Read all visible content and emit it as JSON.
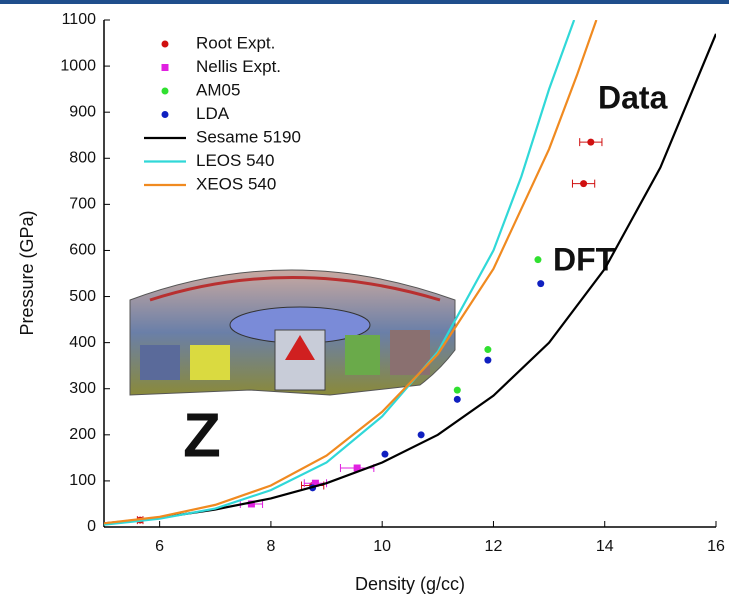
{
  "chart_data": {
    "type": "scatter-line",
    "xlabel": "Density (g/cc)",
    "ylabel": "Pressure (GPa)",
    "annotations": [
      "Data",
      "DFT",
      "Z"
    ],
    "xlim": [
      5,
      16
    ],
    "ylim": [
      0,
      1100
    ],
    "xticks": [
      6,
      8,
      10,
      12,
      14,
      16
    ],
    "yticks": [
      0,
      100,
      200,
      300,
      400,
      500,
      600,
      700,
      800,
      900,
      1000,
      1100
    ],
    "legend": "upper left",
    "series": [
      {
        "name": "Root Expt.",
        "color": "#d01010",
        "mode": "markers",
        "marker": "circle",
        "x": [
          5.65,
          8.75,
          13.62,
          13.75
        ],
        "values": [
          15,
          90,
          745,
          835
        ],
        "xerr": [
          0.05,
          0.2,
          0.2,
          0.2
        ]
      },
      {
        "name": "Nellis Expt.",
        "color": "#e020e0",
        "mode": "markers",
        "marker": "square",
        "x": [
          7.65,
          8.8,
          9.55
        ],
        "values": [
          50,
          95,
          128
        ],
        "xerr": [
          0.2,
          0.2,
          0.3
        ]
      },
      {
        "name": "AM05",
        "color": "#30e030",
        "mode": "markers",
        "marker": "circle",
        "x": [
          11.35,
          11.9,
          12.8
        ],
        "values": [
          297,
          385,
          580
        ]
      },
      {
        "name": "LDA",
        "color": "#1020c0",
        "mode": "markers",
        "marker": "circle",
        "x": [
          8.75,
          10.05,
          10.7,
          11.35,
          11.9,
          12.85
        ],
        "values": [
          85,
          158,
          200,
          277,
          362,
          528
        ]
      },
      {
        "name": "Sesame 5190",
        "color": "#000000",
        "mode": "line",
        "x": [
          5,
          6,
          7,
          8,
          9,
          10,
          11,
          12,
          13,
          14,
          15,
          16
        ],
        "values": [
          8,
          20,
          38,
          62,
          95,
          140,
          200,
          285,
          400,
          560,
          780,
          1070
        ]
      },
      {
        "name": "LEOS 540",
        "color": "#30d8d8",
        "mode": "line",
        "x": [
          5,
          6,
          7,
          8,
          9,
          10,
          11,
          12,
          12.5,
          13,
          13.45
        ],
        "values": [
          5,
          18,
          40,
          80,
          140,
          240,
          380,
          600,
          760,
          950,
          1100
        ]
      },
      {
        "name": "XEOS 540",
        "color": "#f08a20",
        "mode": "line",
        "x": [
          5,
          6,
          7,
          8,
          9,
          10,
          11,
          12,
          13,
          13.5,
          13.85
        ],
        "values": [
          8,
          22,
          48,
          90,
          155,
          250,
          375,
          560,
          820,
          980,
          1100
        ]
      }
    ]
  }
}
